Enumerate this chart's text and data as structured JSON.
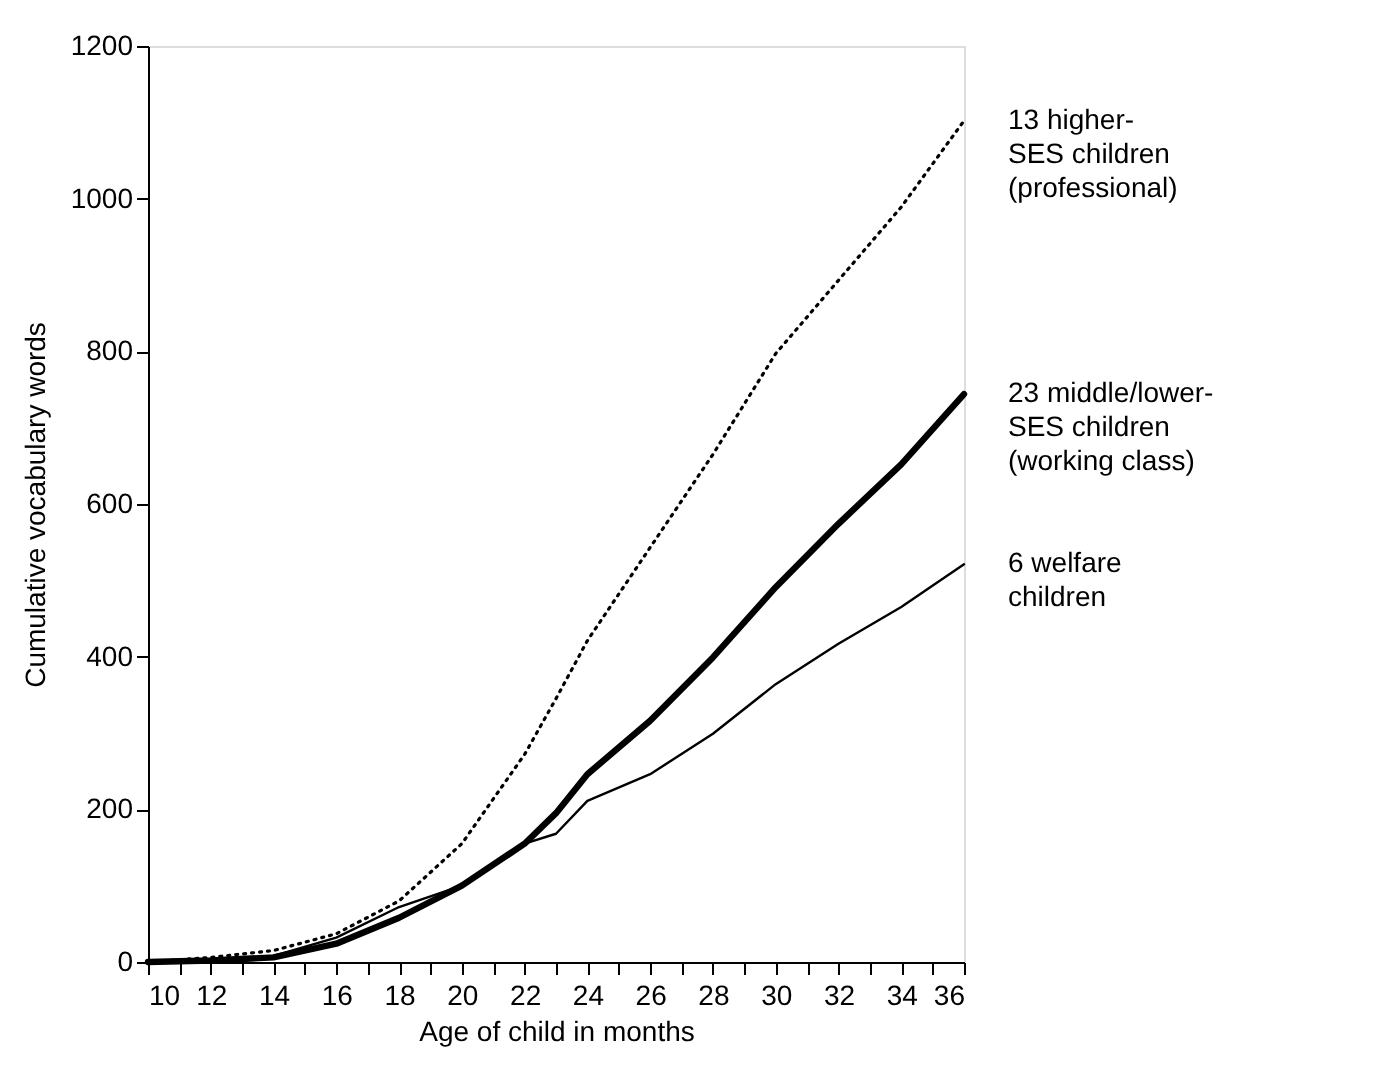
{
  "chart_data": {
    "type": "line",
    "xlabel": "Age of child in months",
    "ylabel": "Cumulative vocabulary words",
    "x": [
      10,
      12,
      14,
      16,
      18,
      20,
      22,
      23,
      24,
      26,
      28,
      30,
      32,
      34,
      36
    ],
    "series": [
      {
        "name": "13 higher-\nSES children\n(professional)",
        "color": "#000000",
        "line_style": "dotted",
        "values": [
          0,
          6,
          15,
          37,
          80,
          155,
          272,
          345,
          421,
          543,
          665,
          797,
          893,
          989,
          1102
        ]
      },
      {
        "name": "23 middle/lower-\nSES children\n(working class)",
        "color": "#000000",
        "line_style": "solid",
        "values": [
          0,
          2,
          6,
          24,
          58,
          100,
          155,
          195,
          246,
          316,
          399,
          491,
          574,
          652,
          744
        ]
      },
      {
        "name": "6 welfare\nchildren",
        "color": "#000000",
        "line_style": "solid",
        "values": [
          0,
          2,
          8,
          32,
          72,
          100,
          155,
          168,
          211,
          246,
          299,
          364,
          417,
          465,
          521
        ]
      }
    ],
    "xlim": [
      10,
      36
    ],
    "ylim": [
      0,
      1200
    ],
    "xticks": [
      10,
      {
        "value": 11,
        "label": null
      },
      12,
      {
        "value": 13,
        "label": null
      },
      14,
      {
        "value": 15,
        "label": null
      },
      16,
      {
        "value": 17,
        "label": null
      },
      18,
      {
        "value": 19,
        "label": null
      },
      20,
      {
        "value": 21,
        "label": null
      },
      22,
      {
        "value": 23,
        "label": null
      },
      24,
      {
        "value": 25,
        "label": null
      },
      26,
      {
        "value": 27,
        "label": null
      },
      28,
      {
        "value": 29,
        "label": null
      },
      30,
      {
        "value": 31,
        "label": null
      },
      32,
      {
        "value": 33,
        "label": null
      },
      34,
      {
        "value": 35,
        "label": null
      },
      36
    ],
    "yticks": [
      0,
      200,
      400,
      600,
      800,
      1000,
      1200
    ],
    "grid": false,
    "legend": false,
    "marker": "none"
  }
}
